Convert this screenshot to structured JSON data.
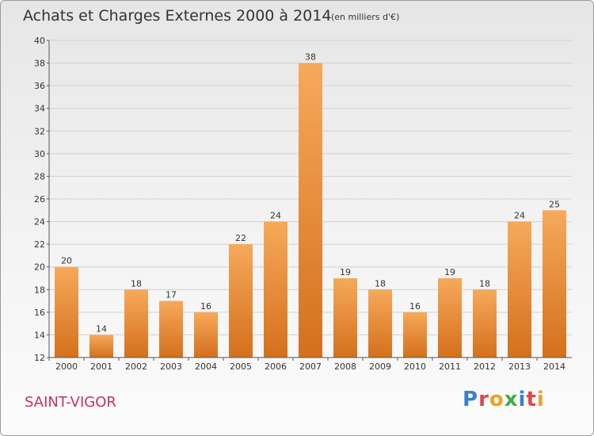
{
  "title": "Achats et Charges Externes 2000 à 2014",
  "subtitle": "(en milliers d'€)",
  "commune": "SAINT-VIGOR",
  "logo": {
    "text": "Proxiti",
    "letter_colors": [
      "#3a7fd1",
      "#e04545",
      "#f0a020",
      "#3cb04a",
      "#3a7fd1",
      "#e04545",
      "#f0a020"
    ]
  },
  "colors": {
    "bar_light": "#f6a95a",
    "bar_dark": "#d4701c",
    "grid": "#d0d0d0",
    "axis": "#555555",
    "commune": "#c8325a"
  },
  "chart_data": {
    "type": "bar",
    "title": "Achats et Charges Externes 2000 à 2014",
    "subtitle": "(en milliers d'€)",
    "categories": [
      "2000",
      "2001",
      "2002",
      "2003",
      "2004",
      "2005",
      "2006",
      "2007",
      "2008",
      "2009",
      "2010",
      "2011",
      "2012",
      "2013",
      "2014"
    ],
    "values": [
      20,
      14,
      18,
      17,
      16,
      22,
      24,
      38,
      19,
      18,
      16,
      19,
      18,
      24,
      25
    ],
    "ylim": [
      12,
      40
    ],
    "yticks": [
      12,
      14,
      16,
      18,
      20,
      22,
      24,
      26,
      28,
      30,
      32,
      34,
      36,
      38,
      40
    ],
    "grid": true,
    "data_labels": true
  }
}
